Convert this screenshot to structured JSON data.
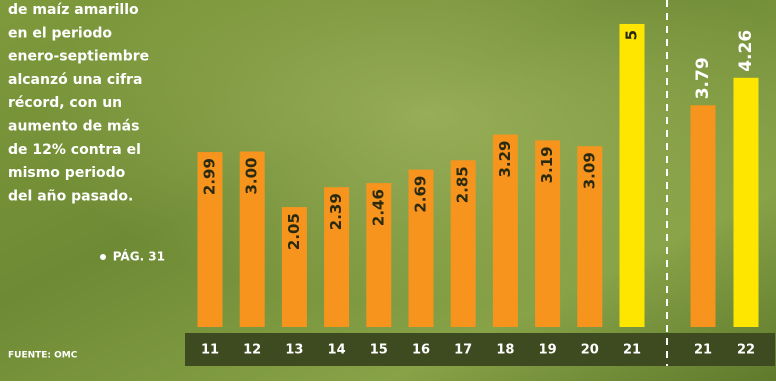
{
  "text": {
    "lines": [
      "de maíz amarillo",
      "en el periodo",
      "enero-septiembre",
      "alcanzó una cifra",
      "récord, con un",
      "aumento de más",
      "de 12% contra el",
      "mismo periodo",
      "del año pasado."
    ],
    "page_ref": "PÁG. 31",
    "source": "FUENTE: OMC"
  },
  "chart_data": [
    {
      "type": "bar",
      "categories": [
        "11",
        "12",
        "13",
        "14",
        "15",
        "16",
        "17",
        "18",
        "19",
        "20",
        "21"
      ],
      "values": [
        2.99,
        3.0,
        2.05,
        2.39,
        2.46,
        2.69,
        2.85,
        3.29,
        3.19,
        3.09,
        5.18
      ],
      "value_labels": [
        "2.99",
        "3.00",
        "2.05",
        "2.39",
        "2.46",
        "2.69",
        "2.85",
        "3.29",
        "3.19",
        "3.09",
        "5"
      ],
      "colors": [
        "#f7941d",
        "#f7941d",
        "#f7941d",
        "#f7941d",
        "#f7941d",
        "#f7941d",
        "#f7941d",
        "#f7941d",
        "#f7941d",
        "#f7941d",
        "#ffe600"
      ]
    },
    {
      "type": "bar",
      "categories": [
        "21",
        "22"
      ],
      "values": [
        3.79,
        4.26
      ],
      "value_labels": [
        "3.79",
        "4.26"
      ],
      "colors": [
        "#f7941d",
        "#ffe600"
      ]
    }
  ]
}
